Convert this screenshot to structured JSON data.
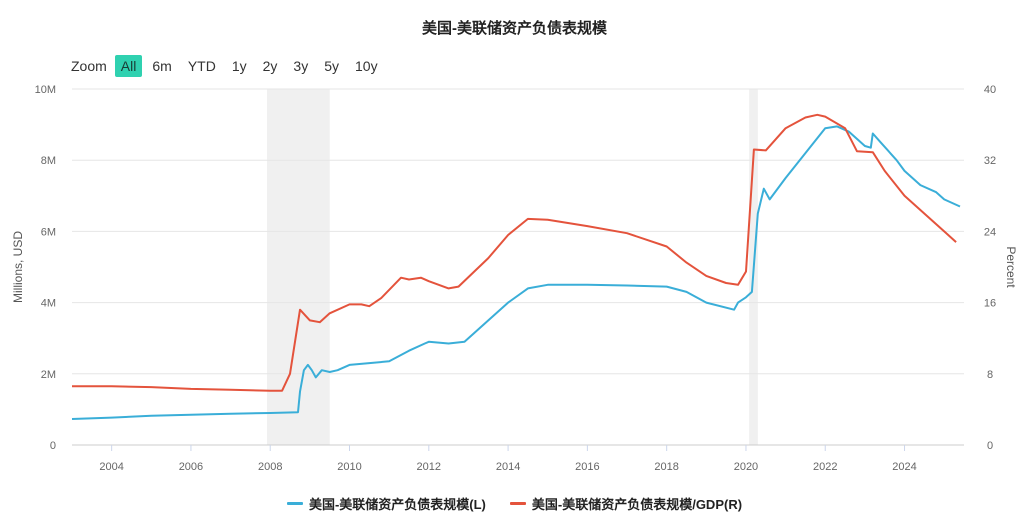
{
  "chart_data": {
    "type": "line",
    "title": "美国-美联储资产负债表规模",
    "zoom": {
      "label": "Zoom",
      "options": [
        "All",
        "6m",
        "YTD",
        "1y",
        "2y",
        "3y",
        "5y",
        "10y"
      ],
      "selected": "All"
    },
    "x_ticks": [
      "2004",
      "2006",
      "2008",
      "2010",
      "2012",
      "2014",
      "2016",
      "2018",
      "2020",
      "2022",
      "2024"
    ],
    "xlim": [
      2003.0,
      2025.5
    ],
    "y_left": {
      "label": "Millions, USD",
      "ticks": [
        "0",
        "2M",
        "4M",
        "6M",
        "8M",
        "10M"
      ],
      "range": [
        0,
        10000000
      ]
    },
    "y_right": {
      "label": "Percent",
      "ticks": [
        "0",
        "8",
        "16",
        "24",
        "32",
        "40"
      ],
      "range": [
        0,
        40
      ]
    },
    "shaded_periods": [
      [
        2007.92,
        2009.5
      ],
      [
        2020.08,
        2020.3
      ]
    ],
    "series": [
      {
        "name": "美国-美联储资产负债表规模(L)",
        "axis": "left",
        "color": "#3aaed8",
        "points": [
          [
            2003.0,
            730000
          ],
          [
            2004.0,
            770000
          ],
          [
            2005.0,
            820000
          ],
          [
            2006.0,
            850000
          ],
          [
            2007.0,
            880000
          ],
          [
            2008.0,
            900000
          ],
          [
            2008.7,
            920000
          ],
          [
            2008.75,
            1500000
          ],
          [
            2008.85,
            2100000
          ],
          [
            2008.95,
            2250000
          ],
          [
            2009.05,
            2100000
          ],
          [
            2009.15,
            1900000
          ],
          [
            2009.3,
            2100000
          ],
          [
            2009.5,
            2050000
          ],
          [
            2009.7,
            2100000
          ],
          [
            2010.0,
            2250000
          ],
          [
            2010.5,
            2300000
          ],
          [
            2011.0,
            2350000
          ],
          [
            2011.5,
            2650000
          ],
          [
            2011.9,
            2850000
          ],
          [
            2012.0,
            2900000
          ],
          [
            2012.5,
            2850000
          ],
          [
            2012.9,
            2900000
          ],
          [
            2013.5,
            3500000
          ],
          [
            2014.0,
            4000000
          ],
          [
            2014.5,
            4400000
          ],
          [
            2015.0,
            4500000
          ],
          [
            2016.0,
            4500000
          ],
          [
            2017.0,
            4480000
          ],
          [
            2018.0,
            4450000
          ],
          [
            2018.5,
            4300000
          ],
          [
            2019.0,
            4000000
          ],
          [
            2019.7,
            3800000
          ],
          [
            2019.8,
            4000000
          ],
          [
            2020.0,
            4150000
          ],
          [
            2020.15,
            4300000
          ],
          [
            2020.3,
            6500000
          ],
          [
            2020.45,
            7200000
          ],
          [
            2020.6,
            6900000
          ],
          [
            2021.0,
            7500000
          ],
          [
            2021.5,
            8200000
          ],
          [
            2022.0,
            8900000
          ],
          [
            2022.3,
            8950000
          ],
          [
            2022.6,
            8800000
          ],
          [
            2023.0,
            8400000
          ],
          [
            2023.15,
            8350000
          ],
          [
            2023.2,
            8750000
          ],
          [
            2023.4,
            8500000
          ],
          [
            2023.8,
            8000000
          ],
          [
            2024.0,
            7700000
          ],
          [
            2024.4,
            7300000
          ],
          [
            2024.8,
            7100000
          ],
          [
            2025.0,
            6900000
          ],
          [
            2025.4,
            6700000
          ]
        ]
      },
      {
        "name": "美国-美联储资产负债表规模/GDP(R)",
        "axis": "right",
        "color": "#e4533c",
        "points": [
          [
            2003.0,
            6.6
          ],
          [
            2003.5,
            6.6
          ],
          [
            2004.0,
            6.6
          ],
          [
            2005.0,
            6.5
          ],
          [
            2006.0,
            6.3
          ],
          [
            2007.0,
            6.2
          ],
          [
            2008.0,
            6.1
          ],
          [
            2008.3,
            6.1
          ],
          [
            2008.5,
            8.0
          ],
          [
            2008.75,
            15.2
          ],
          [
            2009.0,
            14.0
          ],
          [
            2009.25,
            13.8
          ],
          [
            2009.5,
            14.8
          ],
          [
            2010.0,
            15.8
          ],
          [
            2010.3,
            15.8
          ],
          [
            2010.5,
            15.6
          ],
          [
            2010.8,
            16.5
          ],
          [
            2011.3,
            18.8
          ],
          [
            2011.5,
            18.6
          ],
          [
            2011.8,
            18.8
          ],
          [
            2012.0,
            18.4
          ],
          [
            2012.5,
            17.6
          ],
          [
            2012.75,
            17.8
          ],
          [
            2013.5,
            21.0
          ],
          [
            2014.0,
            23.6
          ],
          [
            2014.5,
            25.4
          ],
          [
            2015.0,
            25.3
          ],
          [
            2016.0,
            24.6
          ],
          [
            2017.0,
            23.8
          ],
          [
            2018.0,
            22.3
          ],
          [
            2018.5,
            20.5
          ],
          [
            2019.0,
            19.0
          ],
          [
            2019.5,
            18.2
          ],
          [
            2019.8,
            18.0
          ],
          [
            2020.0,
            19.5
          ],
          [
            2020.2,
            33.2
          ],
          [
            2020.5,
            33.1
          ],
          [
            2021.0,
            35.6
          ],
          [
            2021.5,
            36.8
          ],
          [
            2021.8,
            37.1
          ],
          [
            2022.0,
            36.9
          ],
          [
            2022.5,
            35.6
          ],
          [
            2022.8,
            33.0
          ],
          [
            2023.2,
            32.9
          ],
          [
            2023.5,
            30.8
          ],
          [
            2024.0,
            28.0
          ],
          [
            2024.5,
            26.0
          ],
          [
            2025.0,
            24.0
          ],
          [
            2025.3,
            22.8
          ]
        ]
      }
    ]
  }
}
